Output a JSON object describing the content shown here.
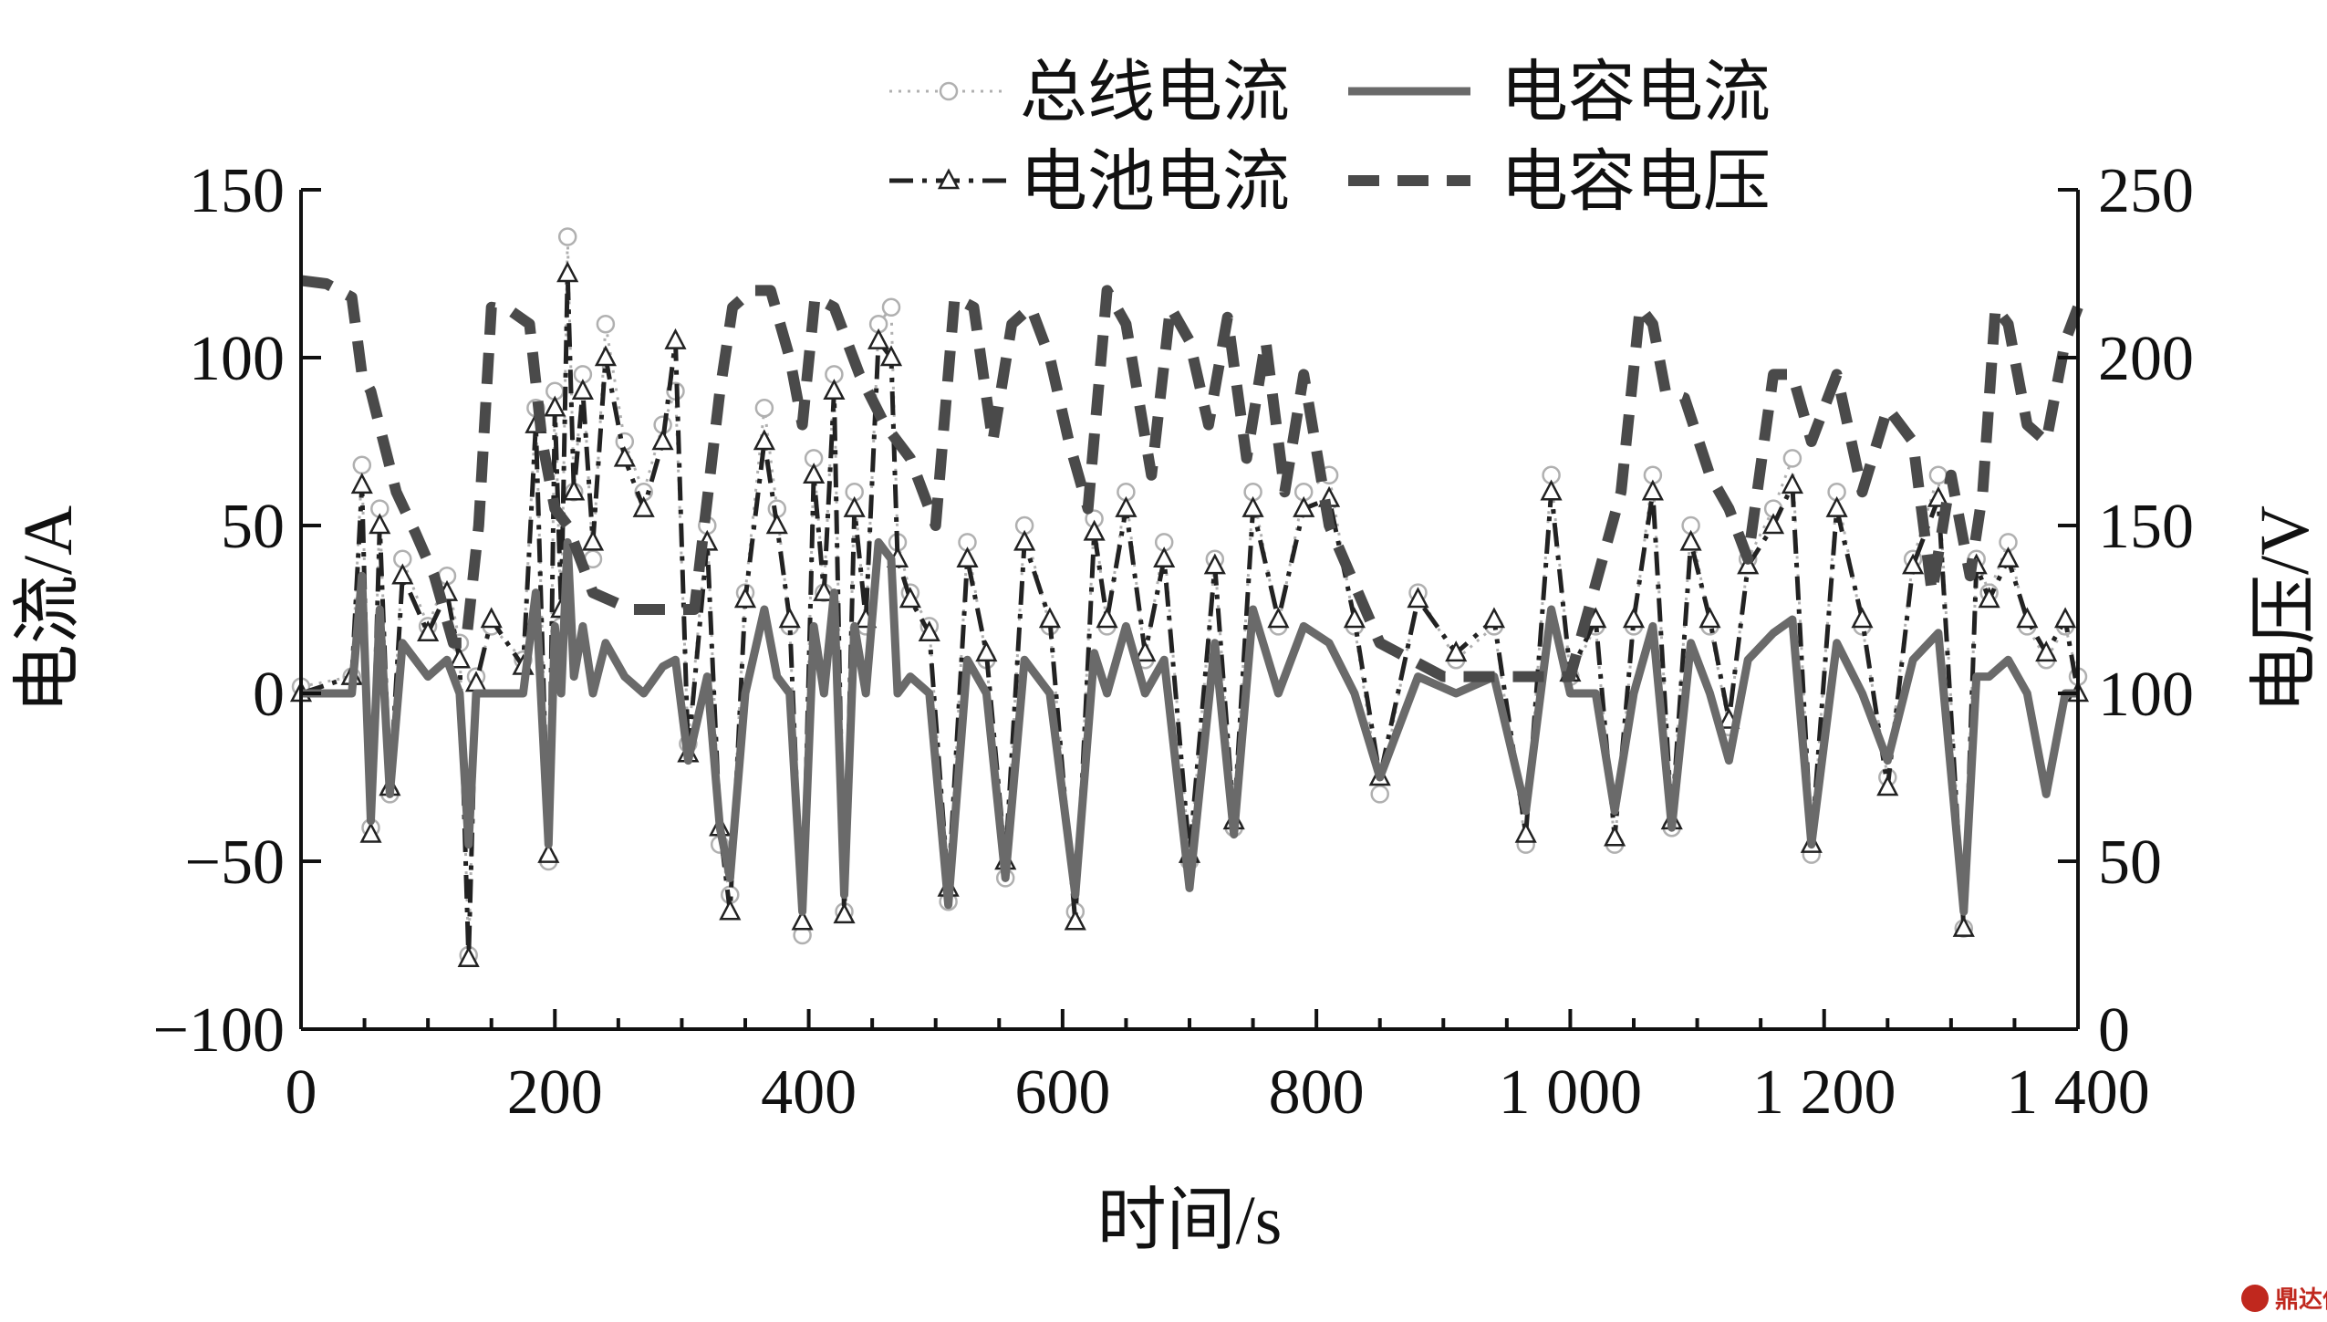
{
  "chart_data": {
    "type": "line",
    "xlabel": "时间/s",
    "ylabel": "电流/A",
    "y2label": "电压/V",
    "xlim": [
      0,
      1400
    ],
    "ylim": [
      -100,
      150
    ],
    "y2lim": [
      0,
      250
    ],
    "x_ticks": [
      0,
      200,
      400,
      600,
      800,
      1000,
      1200,
      1400
    ],
    "x_tick_labels": [
      "0",
      "200",
      "400",
      "600",
      "800",
      "1 000",
      "1 200",
      "1 400"
    ],
    "y_ticks": [
      -100,
      -50,
      0,
      50,
      100,
      150
    ],
    "y_tick_labels": [
      "−100",
      "−50",
      "0",
      "50",
      "100",
      "150"
    ],
    "y2_ticks": [
      0,
      50,
      100,
      150,
      200,
      250
    ],
    "y2_tick_labels": [
      "0",
      "50",
      "100",
      "150",
      "200",
      "250"
    ],
    "legend_position": "top-center",
    "grid": false,
    "series": [
      {
        "name": "总线电流",
        "axis": "left",
        "style": "dotted-circle",
        "color": "#b0b0b0",
        "x": [
          0,
          40,
          48,
          55,
          62,
          70,
          80,
          100,
          115,
          125,
          132,
          138,
          150,
          175,
          185,
          195,
          200,
          205,
          210,
          215,
          222,
          230,
          240,
          255,
          270,
          285,
          295,
          305,
          320,
          330,
          338,
          350,
          365,
          375,
          385,
          395,
          404,
          412,
          420,
          428,
          436,
          445,
          455,
          465,
          470,
          480,
          495,
          510,
          525,
          540,
          555,
          570,
          590,
          610,
          625,
          635,
          650,
          665,
          680,
          700,
          720,
          735,
          750,
          770,
          790,
          810,
          830,
          850,
          880,
          910,
          940,
          965,
          985,
          1000,
          1020,
          1035,
          1050,
          1065,
          1080,
          1095,
          1110,
          1125,
          1140,
          1160,
          1175,
          1190,
          1210,
          1230,
          1250,
          1270,
          1290,
          1310,
          1320,
          1330,
          1345,
          1360,
          1375,
          1390,
          1400
        ],
        "y": [
          2,
          5,
          68,
          -40,
          55,
          -30,
          40,
          20,
          35,
          15,
          -78,
          5,
          20,
          10,
          85,
          -50,
          90,
          20,
          136,
          60,
          95,
          40,
          110,
          75,
          60,
          80,
          90,
          -15,
          50,
          -45,
          -60,
          30,
          85,
          55,
          20,
          -72,
          70,
          30,
          95,
          -65,
          60,
          20,
          110,
          115,
          45,
          30,
          20,
          -62,
          45,
          10,
          -55,
          50,
          20,
          -65,
          52,
          20,
          60,
          10,
          45,
          -50,
          40,
          -40,
          60,
          20,
          60,
          65,
          20,
          -30,
          30,
          10,
          20,
          -45,
          65,
          5,
          20,
          -45,
          20,
          65,
          -40,
          50,
          20,
          -10,
          40,
          55,
          70,
          -48,
          60,
          20,
          -25,
          40,
          65,
          -70,
          40,
          30,
          45,
          20,
          10,
          20,
          5
        ]
      },
      {
        "name": "电池电流",
        "axis": "left",
        "style": "dashdot-triangle",
        "color": "#222222",
        "x": [
          0,
          40,
          48,
          55,
          62,
          70,
          80,
          100,
          115,
          125,
          132,
          138,
          150,
          175,
          185,
          195,
          200,
          205,
          210,
          215,
          222,
          230,
          240,
          255,
          270,
          285,
          295,
          305,
          320,
          330,
          338,
          350,
          365,
          375,
          385,
          395,
          404,
          412,
          420,
          428,
          436,
          445,
          455,
          465,
          470,
          480,
          495,
          510,
          525,
          540,
          555,
          570,
          590,
          610,
          625,
          635,
          650,
          665,
          680,
          700,
          720,
          735,
          750,
          770,
          790,
          810,
          830,
          850,
          880,
          910,
          940,
          965,
          985,
          1000,
          1020,
          1035,
          1050,
          1065,
          1080,
          1095,
          1110,
          1125,
          1140,
          1160,
          1175,
          1190,
          1210,
          1230,
          1250,
          1270,
          1290,
          1310,
          1320,
          1330,
          1345,
          1360,
          1375,
          1390,
          1400
        ],
        "y": [
          0,
          5,
          62,
          -42,
          50,
          -28,
          35,
          18,
          30,
          10,
          -79,
          3,
          22,
          8,
          80,
          -48,
          85,
          25,
          125,
          60,
          90,
          45,
          100,
          70,
          55,
          75,
          105,
          -18,
          45,
          -40,
          -65,
          28,
          75,
          50,
          22,
          -68,
          65,
          30,
          90,
          -66,
          55,
          22,
          105,
          100,
          40,
          28,
          18,
          -58,
          40,
          12,
          -50,
          45,
          22,
          -68,
          48,
          22,
          55,
          12,
          40,
          -48,
          38,
          -38,
          55,
          22,
          55,
          58,
          22,
          -25,
          28,
          12,
          22,
          -42,
          60,
          6,
          22,
          -43,
          22,
          60,
          -38,
          45,
          22,
          -8,
          38,
          50,
          62,
          -45,
          55,
          22,
          -28,
          38,
          58,
          -70,
          38,
          28,
          40,
          22,
          12,
          22,
          0
        ]
      },
      {
        "name": "电容电流",
        "axis": "left",
        "style": "solid",
        "color": "#6a6a6a",
        "x": [
          0,
          40,
          48,
          55,
          62,
          70,
          80,
          100,
          115,
          125,
          132,
          138,
          150,
          175,
          185,
          195,
          200,
          205,
          210,
          215,
          222,
          230,
          240,
          255,
          270,
          285,
          295,
          305,
          320,
          330,
          338,
          350,
          365,
          375,
          385,
          395,
          404,
          412,
          420,
          428,
          436,
          445,
          455,
          465,
          470,
          480,
          495,
          510,
          525,
          540,
          555,
          570,
          590,
          610,
          625,
          635,
          650,
          665,
          680,
          700,
          720,
          735,
          750,
          770,
          790,
          810,
          830,
          850,
          880,
          910,
          940,
          965,
          985,
          1000,
          1020,
          1035,
          1050,
          1065,
          1080,
          1095,
          1110,
          1125,
          1140,
          1160,
          1175,
          1190,
          1210,
          1230,
          1250,
          1270,
          1290,
          1310,
          1320,
          1330,
          1345,
          1360,
          1375,
          1390,
          1400
        ],
        "y": [
          0,
          0,
          35,
          -38,
          25,
          -30,
          15,
          5,
          10,
          0,
          -45,
          0,
          0,
          0,
          30,
          -45,
          20,
          0,
          45,
          5,
          20,
          0,
          15,
          5,
          0,
          8,
          10,
          -20,
          5,
          -40,
          -55,
          0,
          25,
          5,
          0,
          -65,
          20,
          0,
          30,
          -60,
          20,
          0,
          45,
          40,
          0,
          5,
          0,
          -63,
          10,
          0,
          -55,
          10,
          0,
          -60,
          12,
          0,
          20,
          0,
          10,
          -58,
          15,
          -42,
          25,
          0,
          20,
          15,
          0,
          -25,
          5,
          0,
          5,
          -35,
          25,
          0,
          0,
          -35,
          0,
          20,
          -40,
          15,
          0,
          -20,
          10,
          18,
          22,
          -45,
          15,
          0,
          -20,
          10,
          18,
          -65,
          5,
          5,
          10,
          0,
          -30,
          0,
          0
        ]
      },
      {
        "name": "电容电压",
        "axis": "right",
        "style": "dashed",
        "color": "#4a4a4a",
        "x": [
          0,
          20,
          40,
          48,
          55,
          65,
          75,
          90,
          105,
          120,
          130,
          140,
          150,
          165,
          180,
          190,
          200,
          210,
          230,
          260,
          290,
          310,
          330,
          340,
          355,
          370,
          385,
          395,
          405,
          420,
          440,
          460,
          480,
          500,
          515,
          530,
          545,
          560,
          575,
          590,
          605,
          620,
          635,
          650,
          670,
          685,
          700,
          715,
          730,
          745,
          760,
          775,
          790,
          810,
          850,
          900,
          950,
          1000,
          1040,
          1055,
          1065,
          1075,
          1090,
          1110,
          1125,
          1140,
          1160,
          1175,
          1190,
          1210,
          1230,
          1250,
          1270,
          1285,
          1300,
          1315,
          1325,
          1335,
          1345,
          1360,
          1375,
          1390,
          1400
        ],
        "y": [
          223,
          222,
          218,
          195,
          190,
          175,
          160,
          148,
          135,
          115,
          115,
          150,
          215,
          214,
          210,
          175,
          155,
          150,
          130,
          125,
          125,
          125,
          190,
          215,
          220,
          220,
          200,
          180,
          218,
          215,
          195,
          180,
          170,
          150,
          218,
          215,
          175,
          210,
          215,
          200,
          175,
          155,
          220,
          210,
          165,
          215,
          205,
          180,
          212,
          170,
          205,
          160,
          195,
          150,
          115,
          105,
          105,
          105,
          160,
          215,
          210,
          190,
          188,
          165,
          155,
          140,
          195,
          195,
          175,
          195,
          160,
          185,
          175,
          130,
          165,
          135,
          160,
          215,
          210,
          180,
          175,
          205,
          215
        ]
      }
    ],
    "watermark": "鼎达信"
  }
}
